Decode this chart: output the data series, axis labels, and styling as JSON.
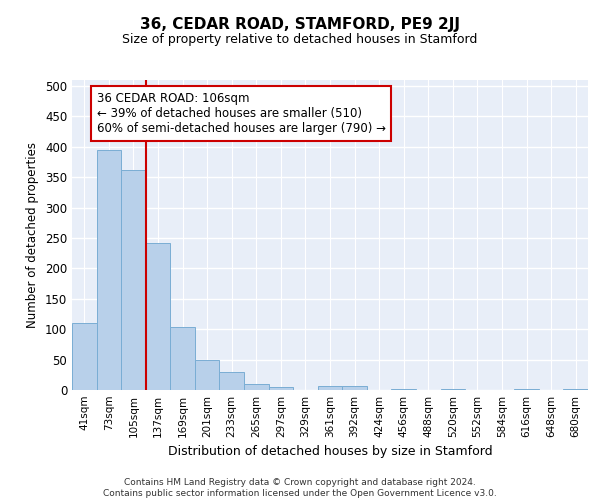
{
  "title": "36, CEDAR ROAD, STAMFORD, PE9 2JJ",
  "subtitle": "Size of property relative to detached houses in Stamford",
  "xlabel": "Distribution of detached houses by size in Stamford",
  "ylabel": "Number of detached properties",
  "bar_color": "#b8d0ea",
  "bar_edge_color": "#7aadd4",
  "background_color": "#e8eef8",
  "categories": [
    "41sqm",
    "73sqm",
    "105sqm",
    "137sqm",
    "169sqm",
    "201sqm",
    "233sqm",
    "265sqm",
    "297sqm",
    "329sqm",
    "361sqm",
    "392sqm",
    "424sqm",
    "456sqm",
    "488sqm",
    "520sqm",
    "552sqm",
    "584sqm",
    "616sqm",
    "648sqm",
    "680sqm"
  ],
  "values": [
    110,
    395,
    362,
    242,
    103,
    50,
    30,
    10,
    5,
    0,
    7,
    6,
    0,
    2,
    0,
    2,
    0,
    0,
    2,
    0,
    2
  ],
  "ylim": [
    0,
    510
  ],
  "yticks": [
    0,
    50,
    100,
    150,
    200,
    250,
    300,
    350,
    400,
    450,
    500
  ],
  "property_line_x": 2.5,
  "property_line_color": "#cc0000",
  "annotation_text": "36 CEDAR ROAD: 106sqm\n← 39% of detached houses are smaller (510)\n60% of semi-detached houses are larger (790) →",
  "annotation_box_color": "#ffffff",
  "annotation_box_edge": "#cc0000",
  "footer_line1": "Contains HM Land Registry data © Crown copyright and database right 2024.",
  "footer_line2": "Contains public sector information licensed under the Open Government Licence v3.0."
}
